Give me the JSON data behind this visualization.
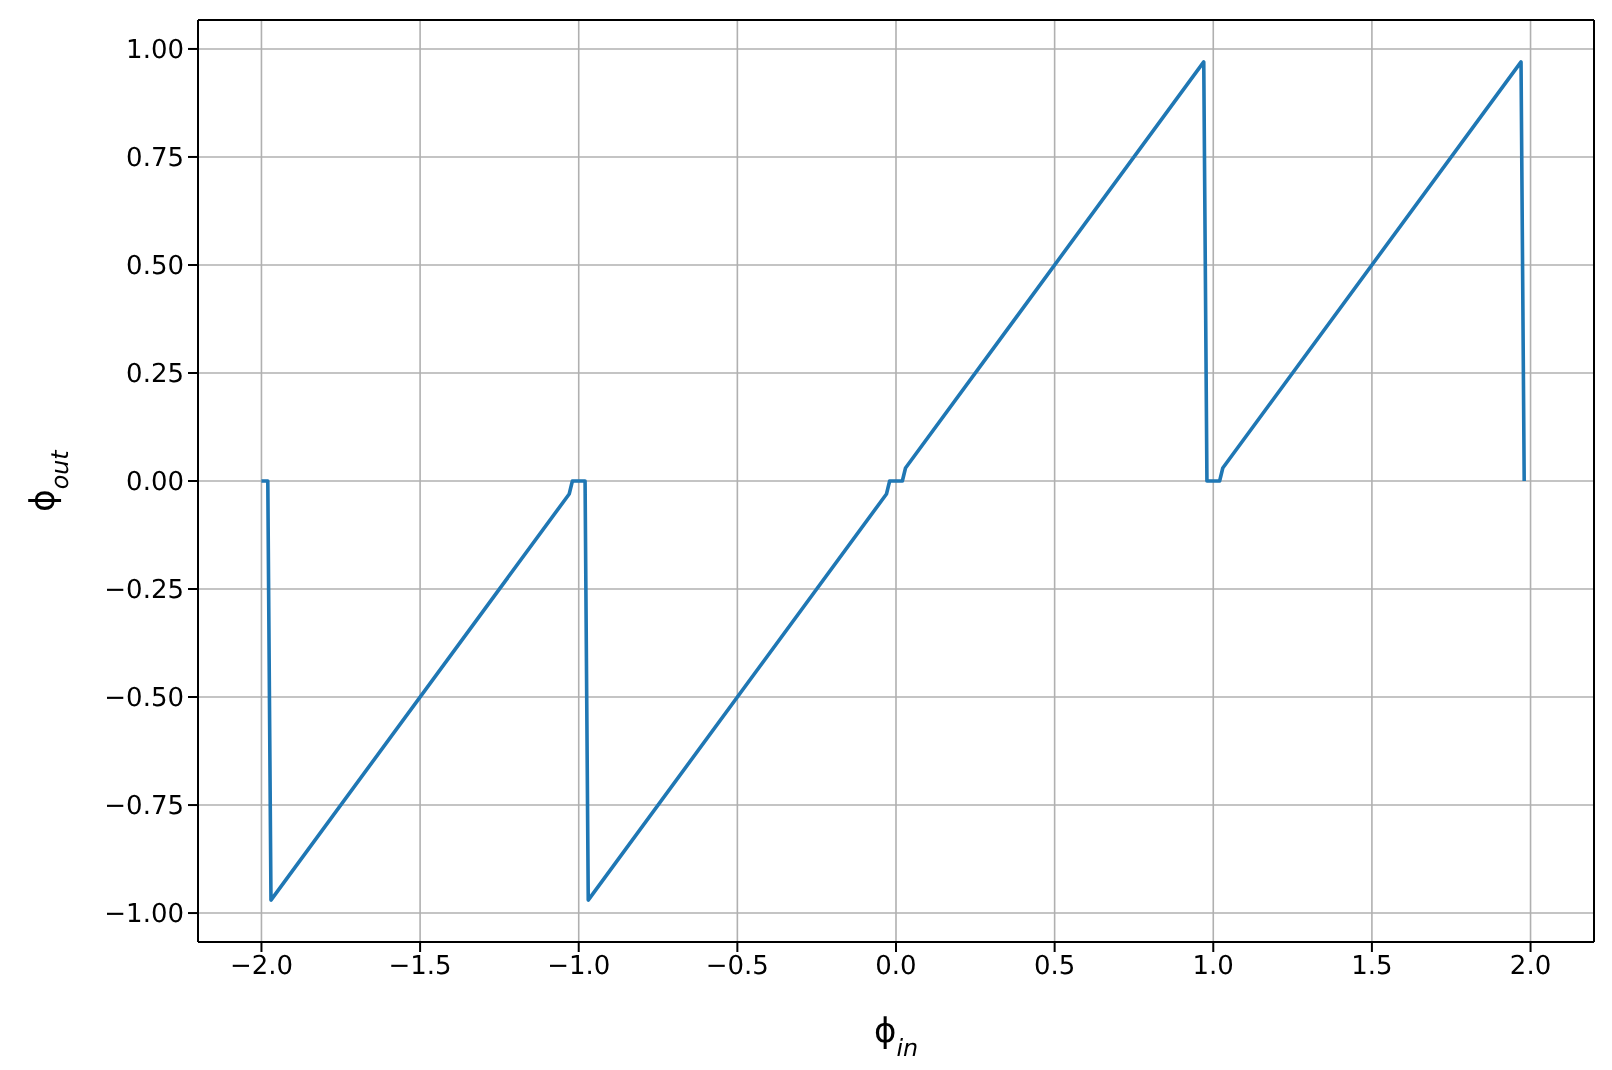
{
  "chart_data": {
    "type": "line",
    "xlabel": "ϕ$_{in}$",
    "ylabel": "ϕ$_{out}$",
    "x": [
      -2,
      -1.98,
      -1.97,
      -1.03,
      -1.02,
      -0.98,
      -0.97,
      -0.03,
      -0.02,
      0.02,
      0.03,
      0.97,
      0.98,
      1.02,
      1.03,
      1.97,
      1.98
    ],
    "series": [
      {
        "color": "#1f77b4",
        "values": [
          0,
          0,
          -0.97,
          -0.03,
          0,
          0,
          -0.97,
          -0.03,
          0,
          0,
          0.03,
          0.97,
          0,
          0,
          0.03,
          0.97,
          0
        ]
      }
    ],
    "xlim": [
      -2.2,
      2.2
    ],
    "xticks": [
      {
        "value": -2,
        "label": "−2.0"
      },
      {
        "value": -1.5,
        "label": "−1.5"
      },
      {
        "value": -1,
        "label": "−1.0"
      },
      {
        "value": -0.5,
        "label": "−0.5"
      },
      {
        "value": 0,
        "label": "0.0"
      },
      {
        "value": 0.5,
        "label": "0.5"
      },
      {
        "value": 1,
        "label": "1.0"
      },
      {
        "value": 1.5,
        "label": "1.5"
      },
      {
        "value": 2,
        "label": "2.0"
      }
    ],
    "ylim": [
      -1.067,
      1.067
    ],
    "yticks": [
      {
        "value": -1,
        "label": "−1.00"
      },
      {
        "value": -0.75,
        "label": "−0.75"
      },
      {
        "value": -0.5,
        "label": "−0.50"
      },
      {
        "value": -0.25,
        "label": "−0.25"
      },
      {
        "value": 0,
        "label": "0.00"
      },
      {
        "value": 0.25,
        "label": "0.25"
      },
      {
        "value": 0.5,
        "label": "0.50"
      },
      {
        "value": 0.75,
        "label": "0.75"
      },
      {
        "value": 1,
        "label": "1.00"
      }
    ],
    "grid": true,
    "marker": "none",
    "line_style": "solid"
  }
}
